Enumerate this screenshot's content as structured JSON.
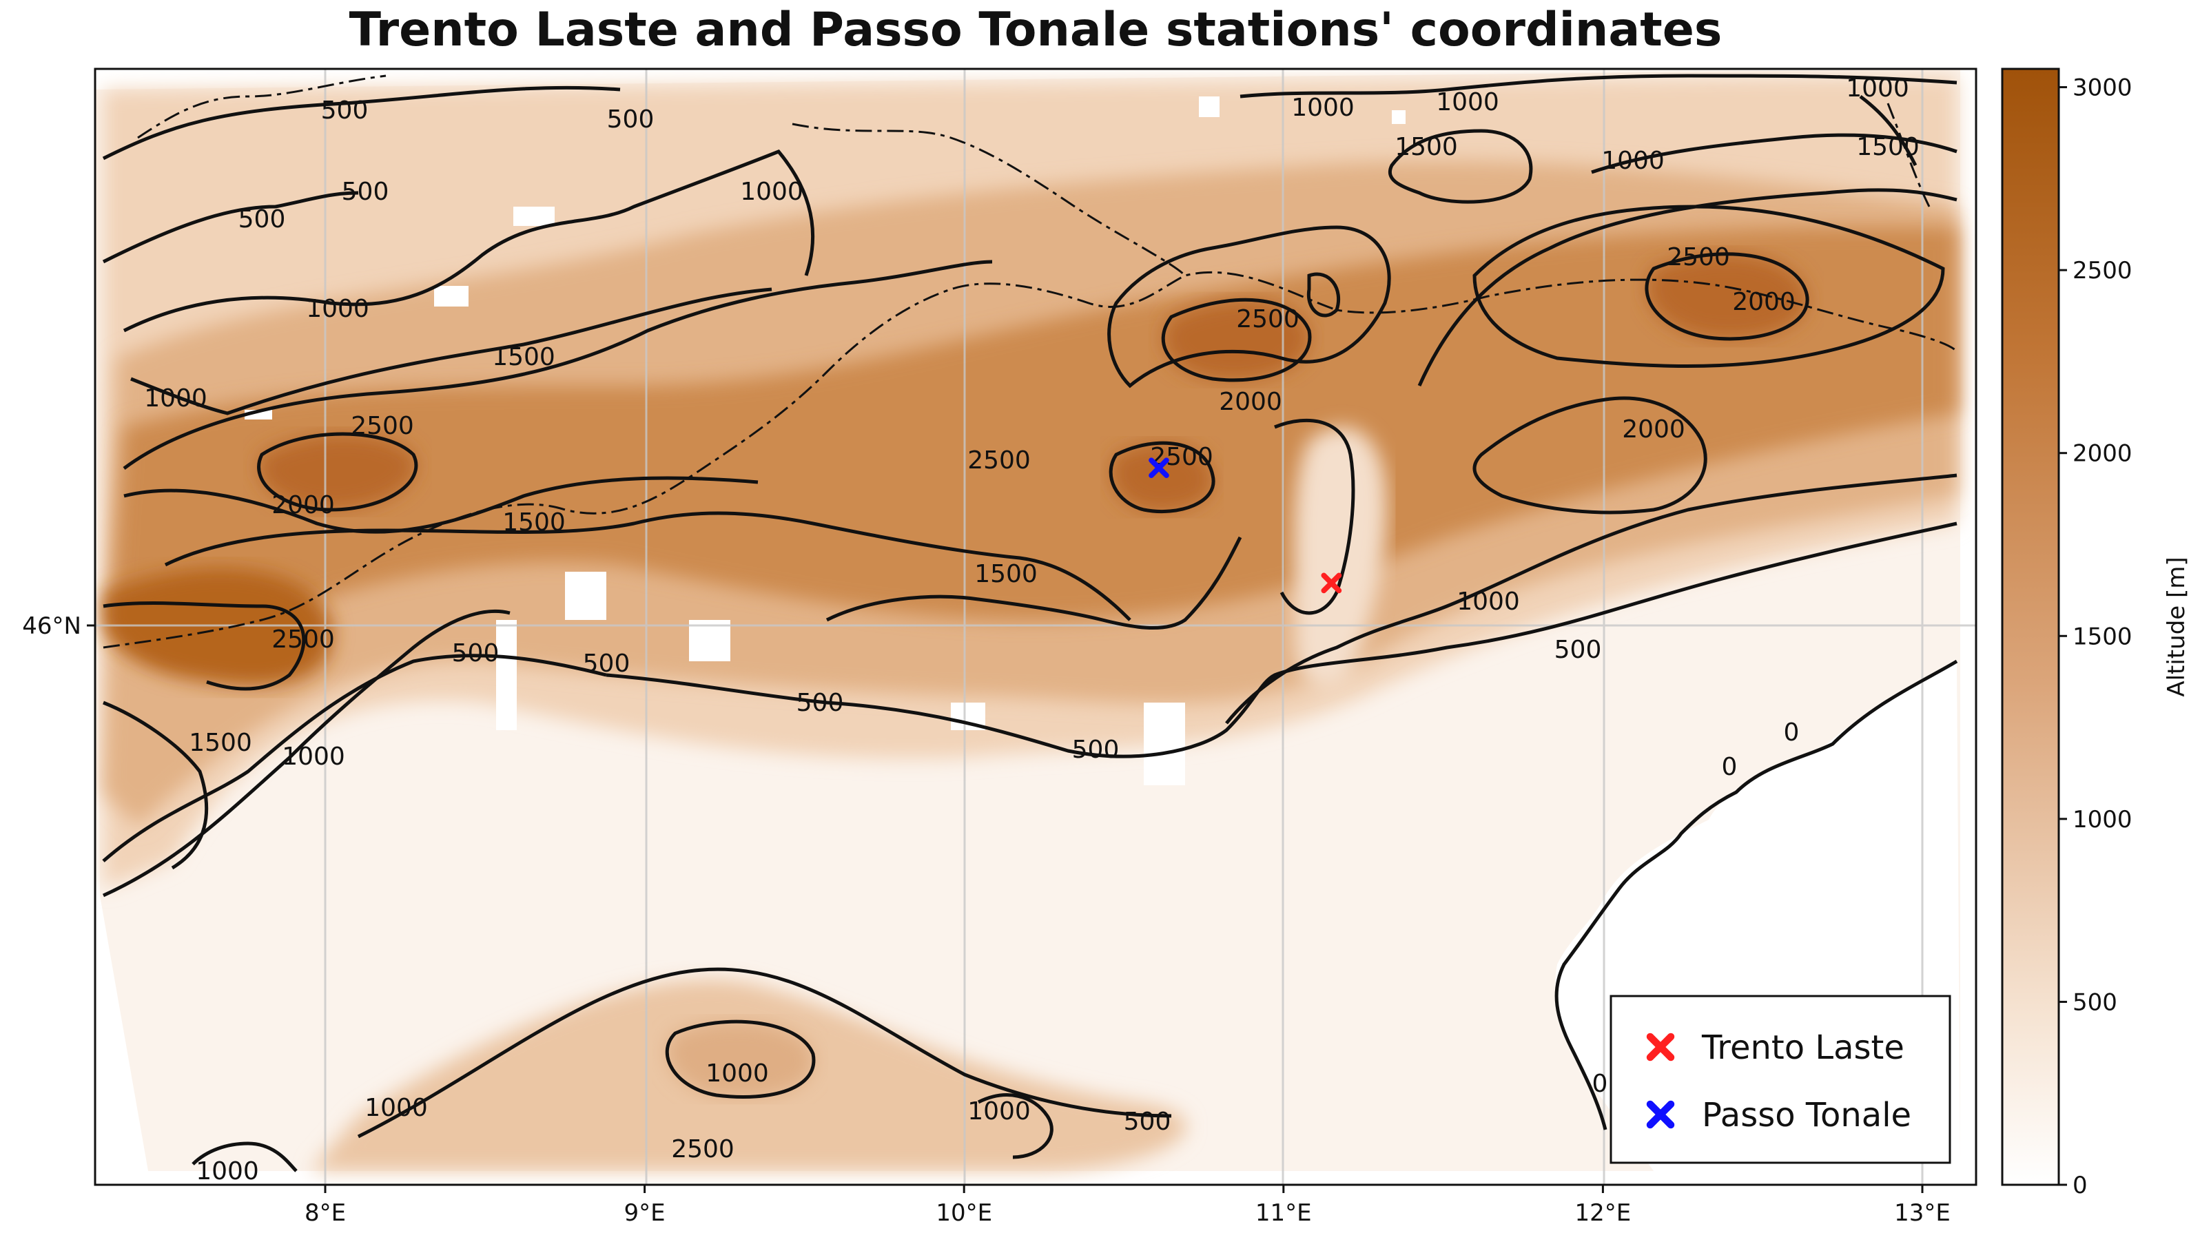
{
  "title": "Trento Laste and Passo Tonale stations' coordinates",
  "map": {
    "lon_ticks": [
      {
        "value": 8,
        "label": "8°E"
      },
      {
        "value": 9,
        "label": "9°E"
      },
      {
        "value": 10,
        "label": "10°E"
      },
      {
        "value": 11,
        "label": "11°E"
      },
      {
        "value": 12,
        "label": "12°E"
      },
      {
        "value": 13,
        "label": "13°E"
      }
    ],
    "lat_ticks": [
      {
        "value": 46,
        "label": "46°N"
      }
    ],
    "stations": [
      {
        "name": "Trento Laste",
        "lon": 11.15,
        "lat": 46.07,
        "color": "#ff2020"
      },
      {
        "name": "Passo Tonale",
        "lon": 10.61,
        "lat": 46.26,
        "color": "#1010ff"
      }
    ],
    "contour_labels": [
      {
        "text": "500"
      },
      {
        "text": "500"
      },
      {
        "text": "500"
      },
      {
        "text": "500"
      },
      {
        "text": "500"
      },
      {
        "text": "500"
      },
      {
        "text": "500"
      },
      {
        "text": "500"
      },
      {
        "text": "500"
      },
      {
        "text": "500"
      },
      {
        "text": "1000"
      },
      {
        "text": "1000"
      },
      {
        "text": "1000"
      },
      {
        "text": "1000"
      },
      {
        "text": "1000"
      },
      {
        "text": "1000"
      },
      {
        "text": "1000"
      },
      {
        "text": "1000"
      },
      {
        "text": "1000"
      },
      {
        "text": "1000"
      },
      {
        "text": "1000"
      },
      {
        "text": "1000"
      },
      {
        "text": "1000"
      },
      {
        "text": "1500"
      },
      {
        "text": "1500"
      },
      {
        "text": "1500"
      },
      {
        "text": "1500"
      },
      {
        "text": "1500"
      },
      {
        "text": "1500"
      },
      {
        "text": "2000"
      },
      {
        "text": "2000"
      },
      {
        "text": "2000"
      },
      {
        "text": "2000"
      },
      {
        "text": "2500"
      },
      {
        "text": "2500"
      },
      {
        "text": "2500"
      },
      {
        "text": "2500"
      },
      {
        "text": "2500"
      },
      {
        "text": "2500"
      },
      {
        "text": "2500"
      },
      {
        "text": "0"
      },
      {
        "text": "0"
      },
      {
        "text": "0"
      }
    ]
  },
  "colorbar": {
    "label": "Altitude [m]",
    "min": 0,
    "max": 3050,
    "color_low": "#ffffff",
    "color_high": "#a0520a",
    "ticks": [
      {
        "value": 0,
        "label": "0"
      },
      {
        "value": 500,
        "label": "500"
      },
      {
        "value": 1000,
        "label": "1000"
      },
      {
        "value": 1500,
        "label": "1500"
      },
      {
        "value": 2000,
        "label": "2000"
      },
      {
        "value": 2500,
        "label": "2500"
      },
      {
        "value": 3000,
        "label": "3000"
      }
    ]
  },
  "legend": {
    "items": [
      {
        "label": "Trento Laste",
        "color": "#ff2020"
      },
      {
        "label": "Passo Tonale",
        "color": "#1010ff"
      }
    ]
  }
}
